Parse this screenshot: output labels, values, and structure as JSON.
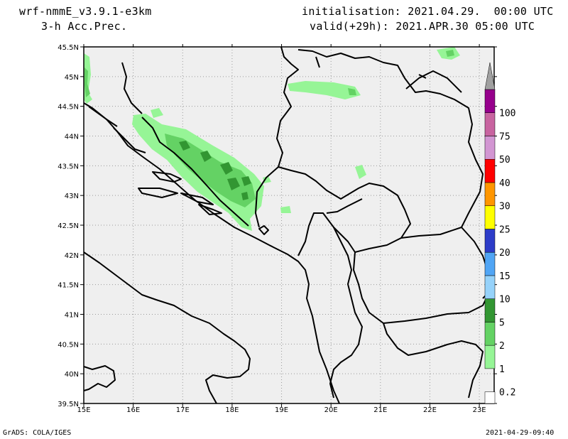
{
  "header": {
    "model": "wrf-nmmE_v3.9.1-e3km",
    "field": "3-h Acc.Prec.",
    "initialisation": "initialisation: 2021.04.29.  00:00 UTC",
    "valid": "valid(+29h): 2021.APR.30 05:00 UTC"
  },
  "footer": {
    "credit": "GrADS: COLA/IGES",
    "timestamp": "2021-04-29-09:40"
  },
  "map": {
    "lon_labels": [
      "15E",
      "16E",
      "17E",
      "18E",
      "19E",
      "20E",
      "21E",
      "22E",
      "23E"
    ],
    "lat_labels": [
      "45.5N",
      "45N",
      "44.5N",
      "44N",
      "43.5N",
      "43N",
      "42.5N",
      "42N",
      "41.5N",
      "41N",
      "40.5N",
      "40N",
      "39.5N"
    ],
    "lon_range": [
      15,
      23.3
    ],
    "lat_range": [
      39.5,
      45.5
    ],
    "grid": true
  },
  "colorbar": {
    "labels": [
      "0.2",
      "1",
      "2",
      "5",
      "10",
      "15",
      "20",
      "25",
      "30",
      "40",
      "50",
      "75",
      "100"
    ],
    "colors": [
      "#ffffff",
      "#96f596",
      "#64d264",
      "#329632",
      "#96d2fa",
      "#50a5f5",
      "#2d3cc8",
      "#ffff00",
      "#ff9600",
      "#ff0000",
      "#d296d2",
      "#c864a0",
      "#96008c",
      "#a0a0a0"
    ]
  }
}
